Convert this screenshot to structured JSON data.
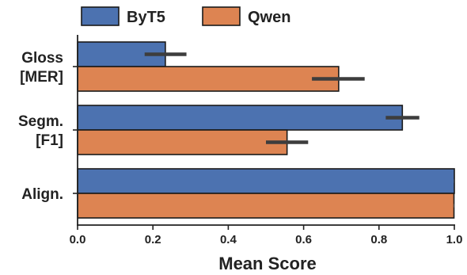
{
  "chart_data": {
    "type": "bar",
    "orientation": "horizontal",
    "categories": [
      [
        "Gloss",
        "[MER]"
      ],
      [
        "Segm.",
        "[F1]"
      ],
      [
        "Align."
      ]
    ],
    "series": [
      {
        "name": "ByT5",
        "color": "#4C72B0",
        "values": [
          0.233,
          0.862,
          1.0
        ],
        "errors": [
          [
            0.178,
            0.289
          ],
          [
            0.818,
            0.907
          ],
          [
            0.999,
            1.0
          ]
        ]
      },
      {
        "name": "Qwen",
        "color": "#DD8452",
        "values": [
          0.693,
          0.556,
          0.999
        ],
        "errors": [
          [
            0.622,
            0.762
          ],
          [
            0.5,
            0.612
          ],
          [
            0.998,
            1.0
          ]
        ]
      }
    ],
    "xlabel": "Mean Score",
    "ylabel": "",
    "title": "",
    "xlim": [
      0.0,
      1.0
    ],
    "xticks": [
      "0.0",
      "0.2",
      "0.4",
      "0.6",
      "0.8",
      "1.0"
    ],
    "grid": false,
    "legend": "top-left, outside"
  }
}
